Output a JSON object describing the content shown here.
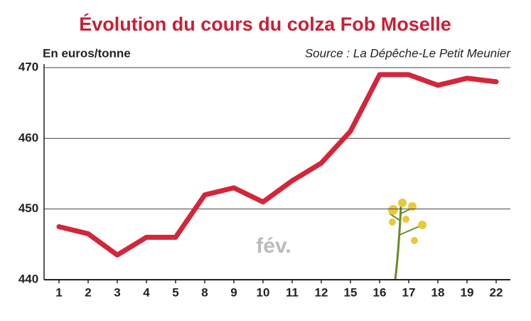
{
  "chart_data": {
    "type": "line",
    "title": "Évolution du cours du colza Fob Moselle",
    "y_label": "En euros/tonne",
    "source": "Source : La Dépêche-Le Petit Meunier",
    "annotation": "fév.",
    "categories": [
      "1",
      "2",
      "3",
      "4",
      "5",
      "8",
      "9",
      "10",
      "11",
      "12",
      "15",
      "16",
      "17",
      "18",
      "19",
      "22"
    ],
    "values": [
      447.5,
      446.5,
      443.5,
      446,
      446,
      452,
      453,
      451,
      454,
      456.5,
      461,
      469,
      469,
      467.5,
      468.5,
      468
    ],
    "color": "#d3263a",
    "ylim": [
      440,
      470
    ],
    "yticks": [
      440,
      450,
      460,
      470
    ],
    "grid": true
  }
}
